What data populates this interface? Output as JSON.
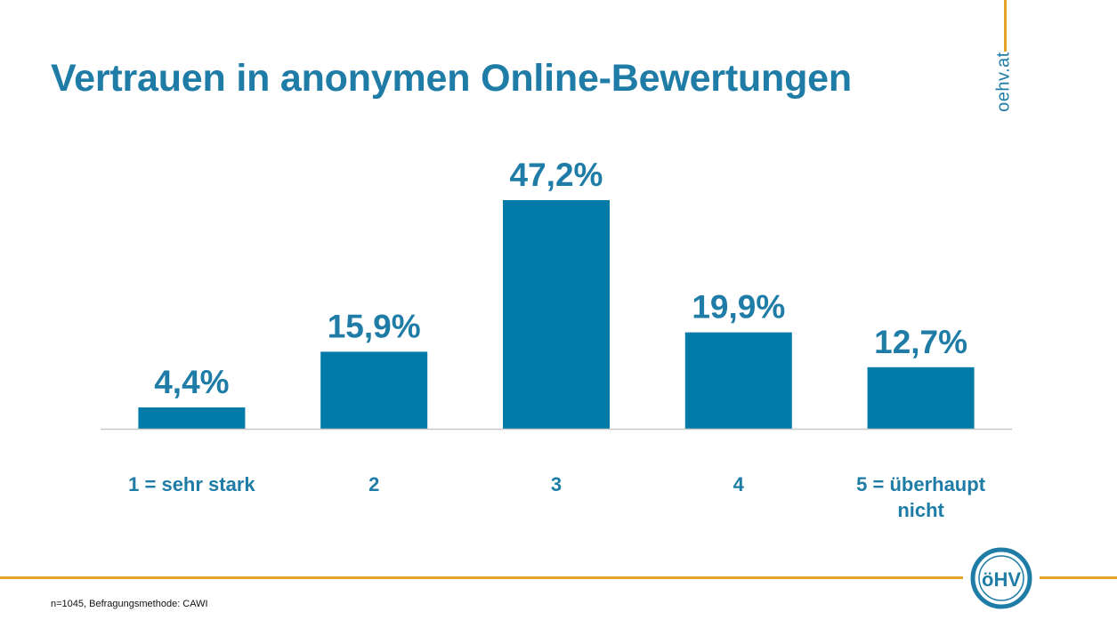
{
  "page": {
    "title": "Vertrauen in anonymen Online-Bewertungen",
    "brand_url": "oehv.at",
    "footnote": "n=1045, Befragungsmethode: CAWI",
    "logo_text": "öHV"
  },
  "colors": {
    "accent": "#1E7CA6",
    "bar": "#037BA8",
    "gold": "#E0A526",
    "baseline": "#C8C8C8"
  },
  "chart_data": {
    "type": "bar",
    "title": "Vertrauen in anonymen Online-Bewertungen",
    "categories": [
      "1 = sehr stark",
      "2",
      "3",
      "4",
      "5 = überhaupt nicht"
    ],
    "values": [
      4.4,
      15.9,
      47.2,
      19.9,
      12.7
    ],
    "value_labels": [
      "4,4%",
      "15,9%",
      "47,2%",
      "19,9%",
      "12,7%"
    ],
    "unit": "%",
    "ylim": [
      0,
      47.2
    ],
    "grid": false,
    "legend": "none"
  }
}
